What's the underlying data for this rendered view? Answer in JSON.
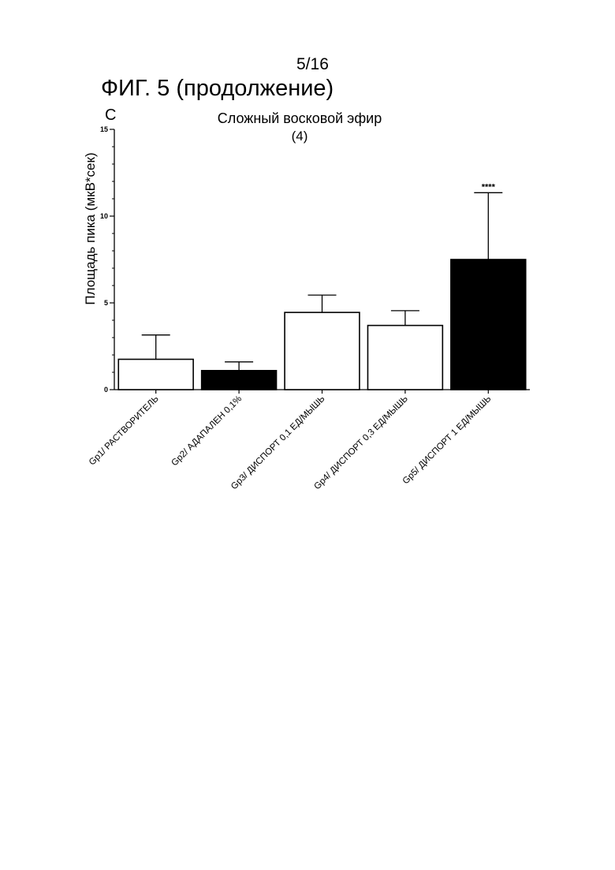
{
  "page": {
    "number": "5/16",
    "figure_title": "ФИГ. 5 (продолжение)"
  },
  "chart_data": {
    "type": "bar",
    "panel_label": "C",
    "title": "Сложный восковой эфир",
    "subtitle": "(4)",
    "xlabel": "",
    "ylabel": "Площадь пика (мкВ*сек)",
    "ylim": [
      0,
      15
    ],
    "yticks": [
      "0",
      "5",
      "10",
      "15"
    ],
    "categories": [
      "Gp1/ РАСТВОРИТЕЛЬ",
      "Gp2/ АДАПАЛЕН 0,1%",
      "Gp3/ ДИСПОРТ 0,1 ЕД/МЫШЬ",
      "Gp4/ ДИСПОРТ 0,3 ЕД/МЫШЬ",
      "Gp5/ ДИСПОРТ 1 ЕД/МЫШЬ"
    ],
    "values": [
      1.75,
      1.1,
      4.45,
      3.7,
      7.5
    ],
    "errors": [
      1.4,
      0.5,
      1.0,
      0.85,
      3.85
    ],
    "fills": [
      "#ffffff",
      "#000000",
      "#ffffff",
      "#ffffff",
      "#000000"
    ],
    "significance": [
      "",
      "",
      "",
      "",
      "****"
    ],
    "grid": false,
    "legend": "none"
  }
}
